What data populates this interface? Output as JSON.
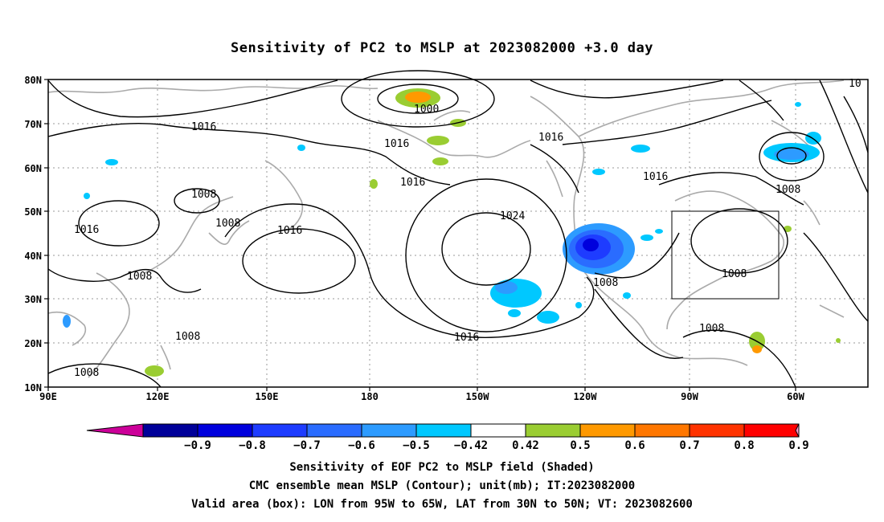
{
  "title": "Sensitivity of PC2 to MSLP at 2023082000 +3.0 day",
  "map": {
    "lat_labels": [
      "80N",
      "70N",
      "60N",
      "50N",
      "40N",
      "30N",
      "20N",
      "10N"
    ],
    "lon_labels": [
      "90E",
      "120E",
      "150E",
      "180",
      "150W",
      "120W",
      "90W",
      "60W"
    ],
    "valid_box": {
      "lon_from": "95W",
      "lon_to": "65W",
      "lat_from": "30N",
      "lat_to": "50N"
    },
    "contour_labels": [
      "1016",
      "1016",
      "1016",
      "1016",
      "1016",
      "1016",
      "1016",
      "1016",
      "1024",
      "1000",
      "1008",
      "1008",
      "1008",
      "1008",
      "1008",
      "1008",
      "1008",
      "1008",
      "1008",
      "10"
    ]
  },
  "colorbar": {
    "labels": [
      "-0.9",
      "-0.8",
      "-0.7",
      "-0.6",
      "-0.5",
      "-0.42",
      "0.42",
      "0.5",
      "0.6",
      "0.7",
      "0.8",
      "0.9"
    ],
    "colors": [
      "#000099",
      "#0000dd",
      "#1e3cff",
      "#2a6cff",
      "#2d9bff",
      "#00c8ff",
      "#ffffff",
      "#9acd32",
      "#ff9900",
      "#ff7700",
      "#ff3300",
      "#ff0000"
    ],
    "under_color": "#cc0099",
    "over_color": "#ff99cc"
  },
  "footer": {
    "line1": "Sensitivity of EOF PC2 to MSLP field (Shaded)",
    "line2": "CMC ensemble mean MSLP (Contour); unit(mb); IT:2023082000",
    "line3": "Valid area (box): LON from 95W to 65W, LAT from 30N to 50N; VT: 2023082600"
  }
}
